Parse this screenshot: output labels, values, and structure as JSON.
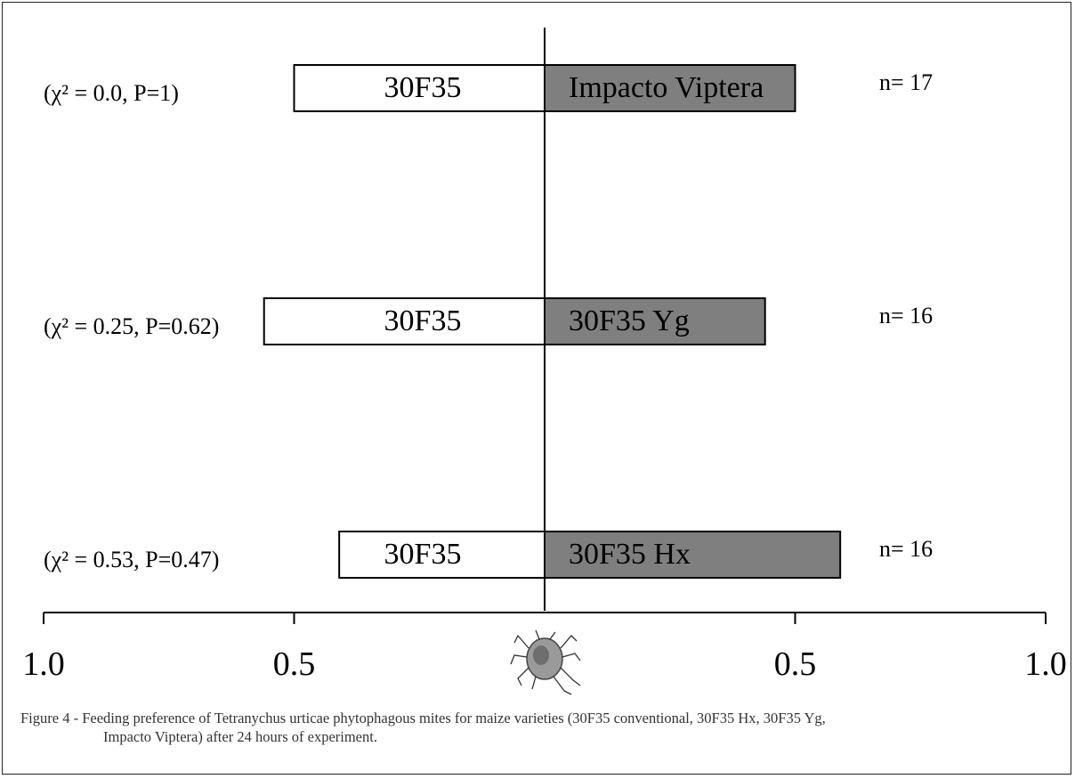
{
  "chart_data": {
    "type": "bar",
    "orientation": "horizontal-diverging",
    "x_left": {
      "ticks": [
        "1.0",
        "0.5"
      ],
      "range": [
        0,
        1.0
      ]
    },
    "x_right": {
      "ticks": [
        "0.5",
        "1.0"
      ],
      "range": [
        0,
        1.0
      ]
    },
    "rows": [
      {
        "left_label": "30F35",
        "right_label": "Impacto Viptera",
        "left_value": 0.5,
        "right_value": 0.5,
        "stat": "(χ² = 0.0, P=1)",
        "n": "n= 17"
      },
      {
        "left_label": "30F35",
        "right_label": "30F35 Yg",
        "left_value": 0.56,
        "right_value": 0.44,
        "stat": "(χ² = 0.25, P=0.62)",
        "n": "n= 16"
      },
      {
        "left_label": "30F35",
        "right_label": "30F35 Hx",
        "left_value": 0.41,
        "right_value": 0.59,
        "stat": "(χ² = 0.53, P=0.47)",
        "n": "n= 16"
      }
    ],
    "colors": {
      "left_fill": "#ffffff",
      "right_fill": "#7f7f7f",
      "stroke": "#000000"
    },
    "axis_icon": "mite-icon"
  },
  "caption": {
    "line1": "Figure 4 - Feeding preference of Tetranychus urticae phytophagous mites for maize varieties (30F35 conventional, 30F35 Hx, 30F35 Yg,",
    "line2": "Impacto Viptera) after 24 hours of experiment."
  }
}
